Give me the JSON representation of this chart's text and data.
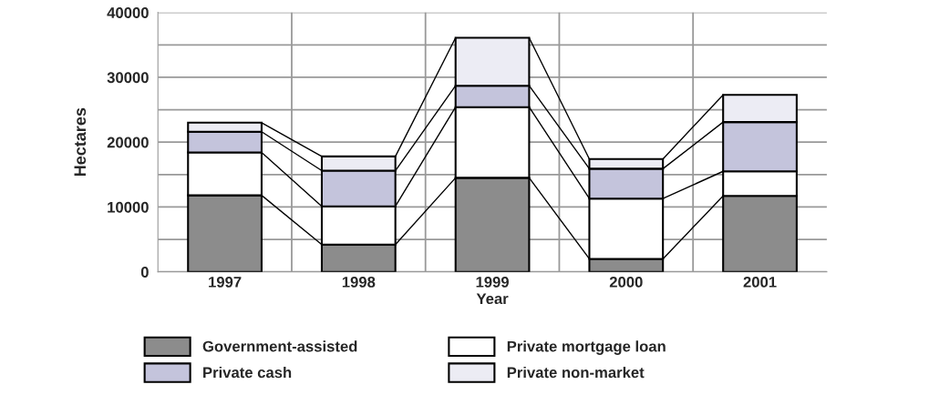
{
  "chart_data": {
    "type": "bar",
    "stacked": true,
    "xlabel": "Year",
    "ylabel": "Hectares",
    "categories": [
      "1997",
      "1998",
      "1999",
      "2000",
      "2001"
    ],
    "series": [
      {
        "name": "Government-assisted",
        "color": "#8c8c8c",
        "values": [
          11800,
          4200,
          14500,
          2000,
          11700
        ]
      },
      {
        "name": "Private mortgage loan",
        "color": "#ffffff",
        "values": [
          6600,
          5900,
          10900,
          9300,
          3800
        ]
      },
      {
        "name": "Private cash",
        "color": "#c4c4dc",
        "values": [
          3200,
          5500,
          3300,
          4600,
          7600
        ]
      },
      {
        "name": "Private non-market",
        "color": "#ececf4",
        "values": [
          1400,
          2200,
          7400,
          1500,
          4200
        ]
      }
    ],
    "ylim": [
      0,
      40000
    ],
    "yticks": [
      0,
      {
        "value": 5000,
        "label": null
      },
      10000,
      {
        "value": 15000,
        "label": null
      },
      20000,
      {
        "value": 25000,
        "label": null
      },
      30000,
      {
        "value": 35000,
        "label": null
      },
      40000
    ],
    "grid": true,
    "legend": "bottom"
  }
}
